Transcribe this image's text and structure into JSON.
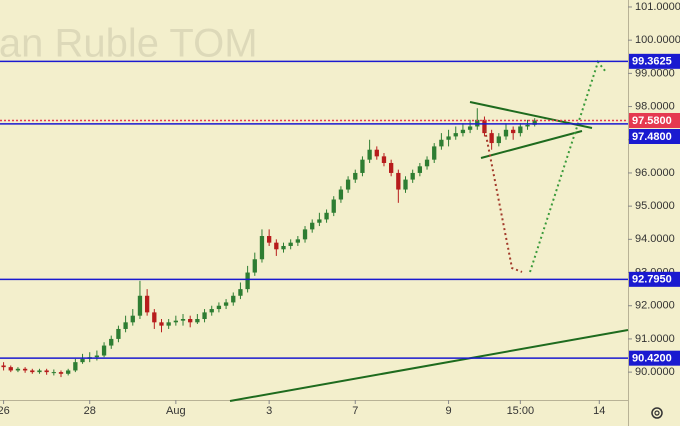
{
  "chart_data": {
    "type": "candlestick",
    "watermark": "sian Ruble TOM",
    "up_color": "#2e7d32",
    "down_color": "#b71c1c",
    "x": [
      0,
      1,
      2,
      3,
      4,
      5,
      6,
      7,
      8,
      9,
      10,
      11,
      12,
      13,
      14,
      15,
      16,
      17,
      18,
      19,
      20,
      21,
      22,
      23,
      24,
      25,
      26,
      27,
      28,
      29,
      30,
      31,
      32,
      33,
      34,
      35,
      36,
      37,
      38,
      39,
      40,
      41,
      42,
      43,
      44,
      45,
      46,
      47,
      48,
      49,
      50,
      51,
      52,
      53,
      54,
      55,
      56,
      57,
      58,
      59,
      60,
      61,
      62,
      63,
      64,
      65,
      66,
      67,
      68,
      69,
      70,
      71,
      72,
      73,
      74
    ],
    "open": [
      90.2,
      90.15,
      90.05,
      90.1,
      90.05,
      90.0,
      90.05,
      90.0,
      90.0,
      89.95,
      90.05,
      90.3,
      90.4,
      90.45,
      90.5,
      90.8,
      91.0,
      91.3,
      91.5,
      91.7,
      92.3,
      91.8,
      91.5,
      91.4,
      91.5,
      91.55,
      91.6,
      91.5,
      91.6,
      91.8,
      91.9,
      92.0,
      92.1,
      92.3,
      92.5,
      93.0,
      93.4,
      94.1,
      93.9,
      93.7,
      93.8,
      93.9,
      94.0,
      94.3,
      94.5,
      94.6,
      94.8,
      95.2,
      95.5,
      95.8,
      96.0,
      96.4,
      96.7,
      96.5,
      96.3,
      96.0,
      95.5,
      95.8,
      96.0,
      96.2,
      96.4,
      96.8,
      97.0,
      97.1,
      97.2,
      97.3,
      97.4,
      97.6,
      97.2,
      96.9,
      97.1,
      97.3,
      97.2,
      97.4,
      97.45
    ],
    "high": [
      90.3,
      90.2,
      90.15,
      90.15,
      90.1,
      90.1,
      90.1,
      90.08,
      90.05,
      90.1,
      90.4,
      90.55,
      90.6,
      90.65,
      90.9,
      91.1,
      91.4,
      91.7,
      91.9,
      92.75,
      92.5,
      91.9,
      91.6,
      91.6,
      91.7,
      91.75,
      91.7,
      91.75,
      91.9,
      92.0,
      92.1,
      92.2,
      92.4,
      92.7,
      93.2,
      93.6,
      94.3,
      94.3,
      94.0,
      93.9,
      94.0,
      94.1,
      94.4,
      94.6,
      94.8,
      94.9,
      95.3,
      95.6,
      95.9,
      96.1,
      96.5,
      97.0,
      96.8,
      96.6,
      96.4,
      96.1,
      95.9,
      96.1,
      96.3,
      96.5,
      96.9,
      97.2,
      97.3,
      97.4,
      97.5,
      97.6,
      97.95,
      97.7,
      97.3,
      97.2,
      97.5,
      97.4,
      97.5,
      97.6,
      97.65
    ],
    "low": [
      90.05,
      90.0,
      90.0,
      89.98,
      89.95,
      89.95,
      89.92,
      89.9,
      89.85,
      89.9,
      90.0,
      90.25,
      90.3,
      90.35,
      90.45,
      90.7,
      90.9,
      91.2,
      91.4,
      91.6,
      91.7,
      91.3,
      91.2,
      91.3,
      91.4,
      91.4,
      91.35,
      91.45,
      91.5,
      91.7,
      91.8,
      91.9,
      92.0,
      92.2,
      92.4,
      92.9,
      93.3,
      93.8,
      93.5,
      93.6,
      93.7,
      93.8,
      93.9,
      94.2,
      94.4,
      94.5,
      94.7,
      95.1,
      95.4,
      95.7,
      95.9,
      96.3,
      96.4,
      96.2,
      95.9,
      95.1,
      95.4,
      95.7,
      95.9,
      96.1,
      96.3,
      96.7,
      96.8,
      97.0,
      97.1,
      97.2,
      97.3,
      97.1,
      96.7,
      96.8,
      97.0,
      97.0,
      97.1,
      97.3,
      97.4
    ],
    "close": [
      90.15,
      90.05,
      90.1,
      90.05,
      90.0,
      90.05,
      90.0,
      90.0,
      89.95,
      90.05,
      90.3,
      90.4,
      90.45,
      90.5,
      90.8,
      91.0,
      91.3,
      91.5,
      91.7,
      92.3,
      91.8,
      91.5,
      91.4,
      91.5,
      91.55,
      91.6,
      91.5,
      91.6,
      91.8,
      91.9,
      92.0,
      92.1,
      92.3,
      92.5,
      93.0,
      93.4,
      94.1,
      93.9,
      93.7,
      93.8,
      93.9,
      94.0,
      94.3,
      94.5,
      94.6,
      94.8,
      95.2,
      95.5,
      95.8,
      96.0,
      96.4,
      96.7,
      96.5,
      96.3,
      96.0,
      95.5,
      95.8,
      96.0,
      96.2,
      96.4,
      96.8,
      97.0,
      97.1,
      97.2,
      97.3,
      97.4,
      97.6,
      97.2,
      96.9,
      97.1,
      97.3,
      97.2,
      97.4,
      97.45,
      97.58
    ],
    "xlim": [
      -0.5,
      87
    ],
    "xticks": [
      {
        "value": 0,
        "label": "26"
      },
      {
        "value": 12,
        "label": "28"
      },
      {
        "value": 24,
        "label": "Aug"
      },
      {
        "value": 37,
        "label": "3"
      },
      {
        "value": 49,
        "label": "7"
      },
      {
        "value": 62,
        "label": "9"
      },
      {
        "value": 72,
        "label": "15:00"
      },
      {
        "value": 83,
        "label": "14"
      }
    ],
    "ylim": [
      89.16,
      101.21
    ],
    "yticks": [
      {
        "value": 90,
        "label": "90.0000"
      },
      {
        "value": 91,
        "label": "91.0000"
      },
      {
        "value": 92,
        "label": "92.0000"
      },
      {
        "value": 93,
        "label": "93.0000"
      },
      {
        "value": 94,
        "label": "94.0000"
      },
      {
        "value": 95,
        "label": "95.0000"
      },
      {
        "value": 96,
        "label": "96.0000"
      },
      {
        "value": 97,
        "label": "97.0000"
      },
      {
        "value": 98,
        "label": "98.0000"
      },
      {
        "value": 99,
        "label": "99.0000"
      },
      {
        "value": 100,
        "label": "100.0000"
      },
      {
        "value": 101,
        "label": "101.0000"
      }
    ],
    "levels": [
      {
        "value": 99.3625,
        "label": "99.3625",
        "color": "#1a1ad0"
      },
      {
        "value": 97.58,
        "label": "97.5800",
        "color": "#e53950"
      },
      {
        "value": 97.48,
        "label": "97.4800",
        "color": "#1a1ad0"
      },
      {
        "value": 92.795,
        "label": "92.7950",
        "color": "#1a1ad0"
      },
      {
        "value": 90.42,
        "label": "90.4200",
        "color": "#1a1ad0"
      }
    ]
  }
}
